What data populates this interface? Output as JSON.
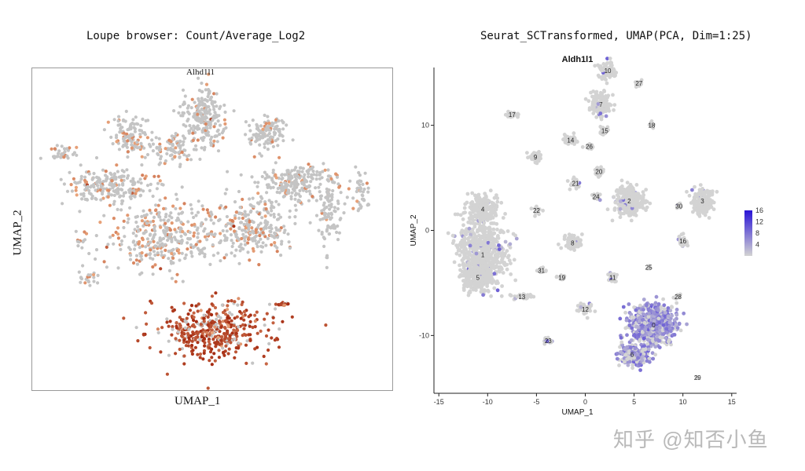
{
  "left_panel": {
    "title": "Loupe browser: Count/Average_Log2",
    "gene_label": "Alhd1l1",
    "xlabel": "UMAP_1",
    "ylabel": "UMAP_2"
  },
  "right_panel": {
    "title": "Seurat_SCTransformed, UMAP(PCA, Dim=1:25)",
    "gene_label": "Aldh1l1",
    "xlabel": "UMAP_1",
    "ylabel": "UMAP_2",
    "legend_ticks": [
      "16",
      "12",
      "8",
      "4"
    ]
  },
  "watermark": "知乎 @知否小鱼",
  "chart_data": [
    {
      "type": "scatter",
      "title": "Loupe browser: Count/Average_Log2",
      "subtitle": "Alhd1l1",
      "xlabel": "UMAP_1",
      "ylabel": "UMAP_2",
      "grid": false,
      "axis_ticks": false,
      "colors": {
        "background_cells": "#c4c4c4",
        "low": "#e9a57c",
        "high": "#a52a10"
      },
      "groups": [
        {
          "x": 0.1,
          "y": -4.2,
          "sx": 2.3,
          "sy": 1.2,
          "n": 430,
          "expr": 0.85,
          "hot": 0.92
        },
        {
          "x": -2.0,
          "y": 0.2,
          "sx": 2.4,
          "sy": 1.4,
          "n": 380,
          "expr": 0.28,
          "hot": 0.05
        },
        {
          "x": 1.8,
          "y": 0.5,
          "sx": 1.6,
          "sy": 1.2,
          "n": 240,
          "expr": 0.25,
          "hot": 0.05
        },
        {
          "x": -4.5,
          "y": 2.5,
          "sx": 1.8,
          "sy": 0.7,
          "n": 220,
          "expr": 0.12,
          "hot": 0.02
        },
        {
          "x": 3.6,
          "y": 2.6,
          "sx": 1.5,
          "sy": 0.8,
          "n": 230,
          "expr": 0.14,
          "hot": 0.02
        },
        {
          "x": -0.4,
          "y": 5.6,
          "sx": 0.9,
          "sy": 1.3,
          "n": 230,
          "expr": 0.12,
          "hot": 0.02
        },
        {
          "x": 2.4,
          "y": 5.0,
          "sx": 0.8,
          "sy": 0.7,
          "n": 120,
          "expr": 0.1,
          "hot": 0.02
        },
        {
          "x": -3.6,
          "y": 4.8,
          "sx": 0.7,
          "sy": 0.8,
          "n": 110,
          "expr": 0.14,
          "hot": 0.02
        },
        {
          "x": -1.8,
          "y": 4.2,
          "sx": 0.9,
          "sy": 0.6,
          "n": 90,
          "expr": 0.12,
          "hot": 0.02
        },
        {
          "x": 5.2,
          "y": 1.2,
          "sx": 0.5,
          "sy": 1.5,
          "n": 90,
          "expr": 0.06,
          "hot": 0.0
        },
        {
          "x": -6.5,
          "y": 4.0,
          "sx": 0.6,
          "sy": 0.4,
          "n": 35,
          "expr": 0.15,
          "hot": 0.0
        },
        {
          "x": -5.5,
          "y": -1.8,
          "sx": 0.5,
          "sy": 0.3,
          "n": 20,
          "expr": 0.1,
          "hot": 0.0
        },
        {
          "x": 6.6,
          "y": 2.2,
          "sx": 0.3,
          "sy": 0.9,
          "n": 40,
          "expr": 0.12,
          "hot": 0.1
        },
        {
          "x": 3.2,
          "y": -3.0,
          "sx": 0.2,
          "sy": 0.1,
          "n": 15,
          "expr": 0.9,
          "hot": 0.7
        },
        {
          "x": -5.8,
          "y": 0.0,
          "sx": 0.4,
          "sy": 0.3,
          "n": 12,
          "expr": 0.2,
          "hot": 0.0
        }
      ]
    },
    {
      "type": "scatter",
      "title": "Aldh1l1",
      "xlabel": "UMAP_1",
      "ylabel": "UMAP_2",
      "xlim": [
        -15.5,
        15.5
      ],
      "ylim": [
        -15.5,
        15.5
      ],
      "xticks": [
        -15,
        -10,
        -5,
        0,
        5,
        10,
        15
      ],
      "yticks": [
        -10,
        0,
        10
      ],
      "legend": {
        "position": "right",
        "min": 0,
        "max": 16,
        "ticks": [
          4,
          8,
          12,
          16
        ]
      },
      "colors": {
        "low": "#d3d3d3",
        "high": "#2a14d6"
      },
      "clusters": [
        {
          "id": "0",
          "x": 7.0,
          "y": -9.0,
          "sx": 2.1,
          "sy": 1.6,
          "n": 700,
          "expr": 0.75
        },
        {
          "id": "1",
          "x": -10.5,
          "y": -2.3,
          "sx": 2.3,
          "sy": 2.8,
          "n": 650,
          "expr": 0.05
        },
        {
          "id": "2",
          "x": 4.5,
          "y": 2.8,
          "sx": 1.4,
          "sy": 1.3,
          "n": 260,
          "expr": 0.1
        },
        {
          "id": "3",
          "x": 12.0,
          "y": 2.8,
          "sx": 1.0,
          "sy": 1.1,
          "n": 170,
          "expr": 0.03
        },
        {
          "id": "4",
          "x": -10.5,
          "y": 2.0,
          "sx": 1.5,
          "sy": 1.2,
          "n": 220,
          "expr": 0.02
        },
        {
          "id": "5",
          "x": -11.0,
          "y": -4.5,
          "sx": 1.3,
          "sy": 1.1,
          "n": 200,
          "expr": 0.02
        },
        {
          "id": "6",
          "x": 4.8,
          "y": -11.8,
          "sx": 1.3,
          "sy": 0.9,
          "n": 260,
          "expr": 0.75
        },
        {
          "id": "7",
          "x": 1.6,
          "y": 12.0,
          "sx": 0.9,
          "sy": 1.1,
          "n": 150,
          "expr": 0.02
        },
        {
          "id": "8",
          "x": -1.3,
          "y": -1.2,
          "sx": 0.8,
          "sy": 0.6,
          "n": 80,
          "expr": 0.02
        },
        {
          "id": "9",
          "x": -5.1,
          "y": 7.0,
          "sx": 0.6,
          "sy": 0.5,
          "n": 55,
          "expr": 0.02
        },
        {
          "id": "10",
          "x": 2.3,
          "y": 15.2,
          "sx": 0.8,
          "sy": 0.8,
          "n": 80,
          "expr": 0.02
        },
        {
          "id": "11",
          "x": 2.8,
          "y": -4.5,
          "sx": 0.4,
          "sy": 0.5,
          "n": 35,
          "expr": 0.1
        },
        {
          "id": "12",
          "x": 0.0,
          "y": -7.5,
          "sx": 0.9,
          "sy": 0.5,
          "n": 40,
          "expr": 0.05
        },
        {
          "id": "13",
          "x": -6.5,
          "y": -6.3,
          "sx": 1.2,
          "sy": 0.3,
          "n": 30,
          "expr": 0.02
        },
        {
          "id": "14",
          "x": -1.5,
          "y": 8.6,
          "sx": 0.6,
          "sy": 0.5,
          "n": 40,
          "expr": 0.02
        },
        {
          "id": "15",
          "x": 2.0,
          "y": 9.5,
          "sx": 0.4,
          "sy": 0.4,
          "n": 25,
          "expr": 0.02
        },
        {
          "id": "16",
          "x": 10.0,
          "y": -1.0,
          "sx": 0.4,
          "sy": 0.4,
          "n": 25,
          "expr": 0.12
        },
        {
          "id": "17",
          "x": -7.5,
          "y": 11.0,
          "sx": 0.6,
          "sy": 0.3,
          "n": 18,
          "expr": 0.02
        },
        {
          "id": "18",
          "x": 6.8,
          "y": 10.0,
          "sx": 0.3,
          "sy": 0.3,
          "n": 15,
          "expr": 0.02
        },
        {
          "id": "19",
          "x": -2.4,
          "y": -4.5,
          "sx": 0.4,
          "sy": 0.3,
          "n": 15,
          "expr": 0.02
        },
        {
          "id": "20",
          "x": 1.4,
          "y": 5.6,
          "sx": 0.5,
          "sy": 0.4,
          "n": 30,
          "expr": 0.02
        },
        {
          "id": "21",
          "x": -1.0,
          "y": 4.5,
          "sx": 0.5,
          "sy": 0.4,
          "n": 25,
          "expr": 0.02
        },
        {
          "id": "22",
          "x": -5.0,
          "y": 1.9,
          "sx": 0.4,
          "sy": 0.3,
          "n": 18,
          "expr": 0.02
        },
        {
          "id": "23",
          "x": -3.8,
          "y": -10.5,
          "sx": 0.4,
          "sy": 0.3,
          "n": 18,
          "expr": 0.35
        },
        {
          "id": "24",
          "x": 1.1,
          "y": 3.2,
          "sx": 0.5,
          "sy": 0.4,
          "n": 25,
          "expr": 0.05
        },
        {
          "id": "25",
          "x": 6.5,
          "y": -3.5,
          "sx": 0.2,
          "sy": 0.2,
          "n": 6,
          "expr": 0.02
        },
        {
          "id": "26",
          "x": 0.4,
          "y": 8.0,
          "sx": 0.4,
          "sy": 0.3,
          "n": 18,
          "expr": 0.02
        },
        {
          "id": "27",
          "x": 5.5,
          "y": 14.0,
          "sx": 0.4,
          "sy": 0.3,
          "n": 15,
          "expr": 0.02
        },
        {
          "id": "28",
          "x": 9.5,
          "y": -6.3,
          "sx": 0.3,
          "sy": 0.3,
          "n": 10,
          "expr": 0.1
        },
        {
          "id": "29",
          "x": 11.5,
          "y": -14.0,
          "sx": 0.1,
          "sy": 0.1,
          "n": 2,
          "expr": 0.0
        },
        {
          "id": "30",
          "x": 9.6,
          "y": 2.3,
          "sx": 0.3,
          "sy": 0.3,
          "n": 15,
          "expr": 0.02
        },
        {
          "id": "31",
          "x": -4.5,
          "y": -3.8,
          "sx": 0.4,
          "sy": 0.3,
          "n": 15,
          "expr": 0.02
        }
      ]
    }
  ]
}
